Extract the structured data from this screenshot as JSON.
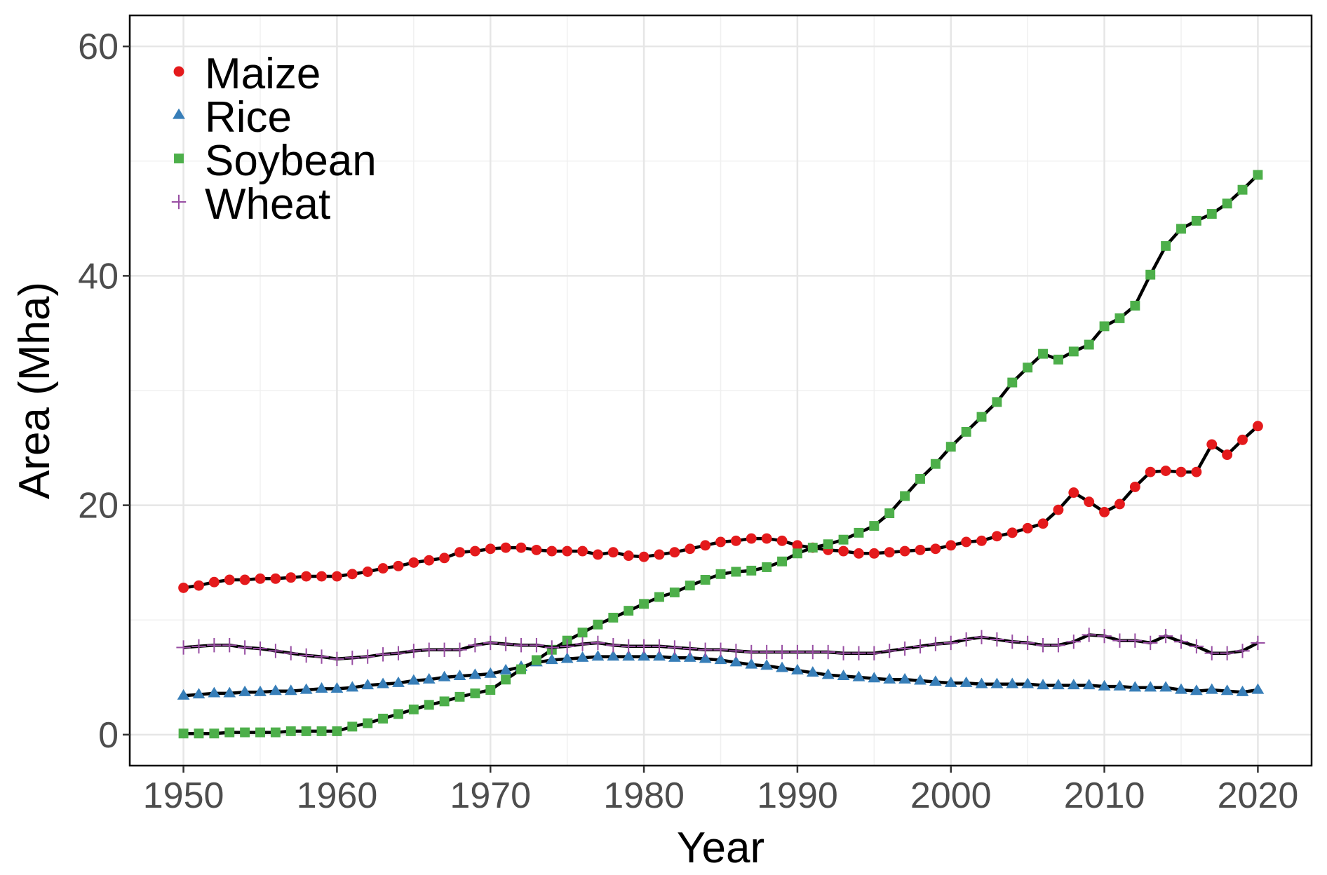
{
  "chart_data": {
    "type": "line",
    "xlabel": "Year",
    "ylabel": "Area (Mha)",
    "xlim": [
      1946.5,
      2023.5
    ],
    "ylim": [
      -2.7,
      62.7
    ],
    "x_ticks": [
      1950,
      1960,
      1970,
      1980,
      1990,
      2000,
      2010,
      2020
    ],
    "y_ticks": [
      0,
      20,
      40,
      60
    ],
    "grid": true,
    "legend_position": "top-left",
    "x": [
      1950,
      1951,
      1952,
      1953,
      1954,
      1955,
      1956,
      1957,
      1958,
      1959,
      1960,
      1961,
      1962,
      1963,
      1964,
      1965,
      1966,
      1967,
      1968,
      1969,
      1970,
      1971,
      1972,
      1973,
      1974,
      1975,
      1976,
      1977,
      1978,
      1979,
      1980,
      1981,
      1982,
      1983,
      1984,
      1985,
      1986,
      1987,
      1988,
      1989,
      1990,
      1991,
      1992,
      1993,
      1994,
      1995,
      1996,
      1997,
      1998,
      1999,
      2000,
      2001,
      2002,
      2003,
      2004,
      2005,
      2006,
      2007,
      2008,
      2009,
      2010,
      2011,
      2012,
      2013,
      2014,
      2015,
      2016,
      2017,
      2018,
      2019,
      2020
    ],
    "series": [
      {
        "name": "Maize",
        "color": "#e41a1c",
        "marker": "circle",
        "values": [
          12.8,
          13.0,
          13.3,
          13.5,
          13.5,
          13.6,
          13.6,
          13.7,
          13.8,
          13.8,
          13.8,
          14.0,
          14.2,
          14.5,
          14.7,
          15.0,
          15.2,
          15.4,
          15.9,
          16.0,
          16.2,
          16.3,
          16.3,
          16.1,
          16.0,
          16.0,
          16.0,
          15.7,
          15.9,
          15.6,
          15.5,
          15.7,
          15.9,
          16.2,
          16.5,
          16.8,
          16.9,
          17.1,
          17.1,
          16.9,
          16.5,
          16.3,
          16.1,
          16.0,
          15.8,
          15.8,
          15.9,
          16.0,
          16.1,
          16.2,
          16.5,
          16.8,
          16.9,
          17.3,
          17.6,
          18.0,
          18.4,
          19.6,
          21.1,
          20.3,
          19.4,
          20.1,
          21.6,
          22.9,
          23.0,
          22.9,
          22.9,
          25.3,
          24.4,
          25.7,
          26.9
        ]
      },
      {
        "name": "Rice",
        "color": "#377eb8",
        "marker": "triangle",
        "values": [
          3.4,
          3.5,
          3.6,
          3.6,
          3.7,
          3.7,
          3.8,
          3.8,
          3.9,
          4.0,
          4.0,
          4.1,
          4.3,
          4.4,
          4.5,
          4.7,
          4.8,
          5.0,
          5.1,
          5.2,
          5.3,
          5.6,
          5.9,
          6.3,
          6.5,
          6.6,
          6.7,
          6.8,
          6.8,
          6.8,
          6.8,
          6.8,
          6.7,
          6.7,
          6.6,
          6.5,
          6.3,
          6.1,
          6.0,
          5.8,
          5.6,
          5.4,
          5.2,
          5.1,
          5.0,
          4.9,
          4.8,
          4.8,
          4.7,
          4.6,
          4.5,
          4.5,
          4.4,
          4.4,
          4.4,
          4.4,
          4.3,
          4.3,
          4.3,
          4.3,
          4.2,
          4.2,
          4.1,
          4.1,
          4.1,
          3.9,
          3.8,
          3.9,
          3.8,
          3.7,
          3.9
        ]
      },
      {
        "name": "Soybean",
        "color": "#4daf4a",
        "marker": "square",
        "values": [
          0.1,
          0.1,
          0.1,
          0.2,
          0.2,
          0.2,
          0.2,
          0.3,
          0.3,
          0.3,
          0.3,
          0.7,
          1.0,
          1.4,
          1.8,
          2.2,
          2.6,
          2.9,
          3.3,
          3.6,
          3.9,
          4.8,
          5.7,
          6.5,
          7.4,
          8.2,
          8.9,
          9.6,
          10.2,
          10.8,
          11.4,
          12.0,
          12.4,
          13.0,
          13.5,
          14.0,
          14.2,
          14.3,
          14.6,
          15.1,
          15.8,
          16.3,
          16.6,
          17.0,
          17.6,
          18.2,
          19.3,
          20.8,
          22.3,
          23.6,
          25.1,
          26.4,
          27.7,
          29.0,
          30.7,
          32.0,
          33.2,
          32.7,
          33.4,
          34.0,
          35.6,
          36.3,
          37.4,
          40.1,
          42.6,
          44.1,
          44.8,
          45.4,
          46.3,
          47.5,
          48.8
        ]
      },
      {
        "name": "Wheat",
        "color": "#984ea3",
        "marker": "plus",
        "values": [
          7.6,
          7.7,
          7.8,
          7.8,
          7.6,
          7.5,
          7.3,
          7.1,
          6.9,
          6.8,
          6.6,
          6.7,
          6.8,
          7.0,
          7.1,
          7.3,
          7.4,
          7.4,
          7.4,
          7.8,
          8.0,
          7.9,
          7.8,
          7.8,
          7.6,
          7.7,
          7.9,
          8.0,
          7.8,
          7.7,
          7.7,
          7.7,
          7.6,
          7.5,
          7.4,
          7.4,
          7.3,
          7.2,
          7.2,
          7.2,
          7.2,
          7.2,
          7.2,
          7.1,
          7.1,
          7.1,
          7.3,
          7.5,
          7.7,
          7.9,
          8.0,
          8.3,
          8.5,
          8.3,
          8.1,
          8.0,
          7.8,
          7.8,
          8.1,
          8.7,
          8.6,
          8.2,
          8.2,
          8.0,
          8.6,
          8.1,
          7.7,
          7.1,
          7.1,
          7.3,
          8.0
        ]
      }
    ]
  }
}
